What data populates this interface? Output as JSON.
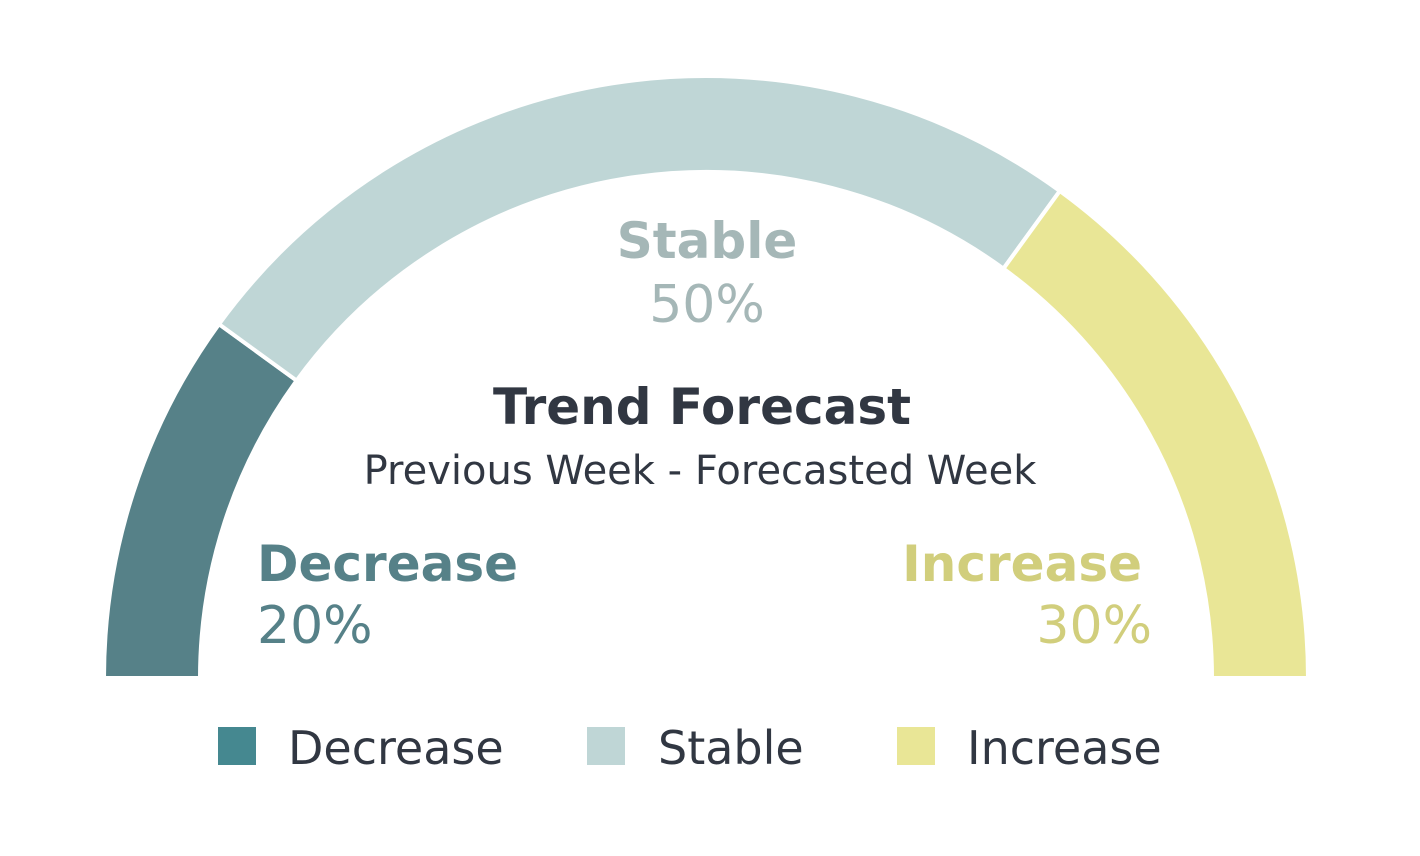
{
  "chart_data": {
    "type": "pie",
    "variant": "semi-donut-gauge",
    "title": "Trend Forecast",
    "subtitle": "Previous Week - Forecasted Week",
    "slices": [
      {
        "label": "Decrease",
        "value": 20,
        "value_label": "20%",
        "color": "#568188",
        "label_color": "#568188",
        "legend_color": "#458890"
      },
      {
        "label": "Stable",
        "value": 50,
        "value_label": "50%",
        "color": "#bfd6d6",
        "label_color": "#a5b7b7",
        "legend_color": "#bfd6d6"
      },
      {
        "label": "Increase",
        "value": 30,
        "value_label": "30%",
        "color": "#e9e696",
        "label_color": "#d1ce7c",
        "legend_color": "#e9e696"
      }
    ],
    "legend": {
      "position": "bottom",
      "items": [
        "Decrease",
        "Stable",
        "Increase"
      ]
    }
  }
}
